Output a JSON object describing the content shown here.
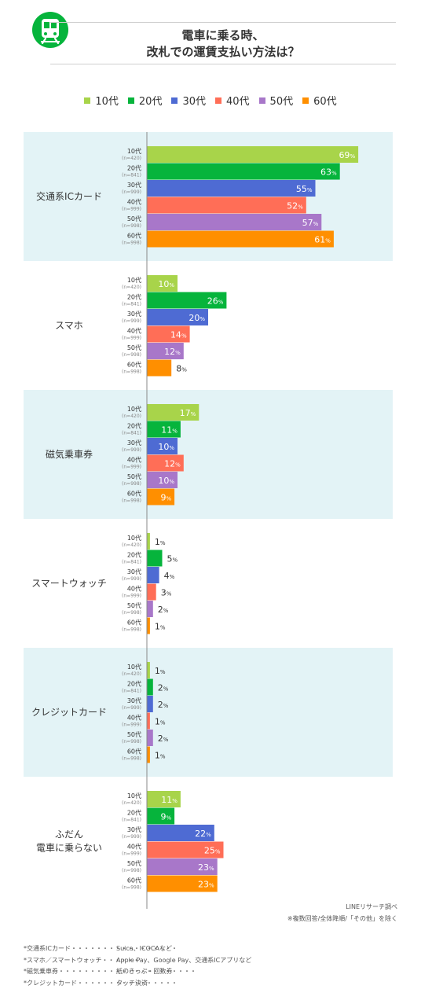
{
  "header": {
    "icon": "train-icon",
    "icon_color": "#06B43C",
    "title_line1": "電車に乗る時、",
    "title_line2": "改札での運賃支払い方法は？"
  },
  "colors": {
    "10代": "#A8D44A",
    "20代": "#06B43C",
    "30代": "#4E6BD3",
    "40代": "#FF6E57",
    "50代": "#A877C9",
    "60代": "#FF8F00",
    "panel": "#E3F3F6",
    "axis": "#888888"
  },
  "chart_data": {
    "type": "bar",
    "orientation": "horizontal",
    "value_unit": "%",
    "xlim": [
      0,
      100
    ],
    "series": [
      {
        "name": "10代",
        "n": "(n=420)"
      },
      {
        "name": "20代",
        "n": "(n=841)"
      },
      {
        "name": "30代",
        "n": "(n=999)"
      },
      {
        "name": "40代",
        "n": "(n=999)"
      },
      {
        "name": "50代",
        "n": "(n=998)"
      },
      {
        "name": "60代",
        "n": "(n=998)"
      }
    ],
    "categories": [
      {
        "label": [
          "交通系ICカード"
        ],
        "values": [
          69,
          63,
          55,
          52,
          57,
          61
        ],
        "shaded": true
      },
      {
        "label": [
          "スマホ"
        ],
        "values": [
          10,
          26,
          20,
          14,
          12,
          8
        ],
        "shaded": false
      },
      {
        "label": [
          "磁気乗車券"
        ],
        "values": [
          17,
          11,
          10,
          12,
          10,
          9
        ],
        "shaded": true
      },
      {
        "label": [
          "スマートウォッチ"
        ],
        "values": [
          1,
          5,
          4,
          3,
          2,
          1
        ],
        "shaded": false
      },
      {
        "label": [
          "クレジットカード"
        ],
        "values": [
          1,
          2,
          2,
          1,
          2,
          1
        ],
        "shaded": true
      },
      {
        "label": [
          "ふだん",
          "電車に乗らない"
        ],
        "values": [
          11,
          9,
          22,
          25,
          23,
          23
        ],
        "shaded": false
      }
    ],
    "legend_position": "top"
  },
  "credit": {
    "source": "LINEリサーチ調べ",
    "note": "※複数回答/全体降順/「その他」を除く"
  },
  "notes": [
    {
      "term": "*交通系ICカード・・・・・・・・・・・・・・・・・",
      "desc": "Suica、ICOCAなど"
    },
    {
      "term": "*スマホ／スマートウォッチ・・・・・・",
      "desc": "Apple Pay、Google Pay、交通系ICアプリなど"
    },
    {
      "term": "*磁気乗車券・・・・・・・・・・・・・・・・・・・・・・",
      "desc": "紙のきっぷ・回数券"
    },
    {
      "term": "*クレジットカード・・・・・・・・・・・・・・・・",
      "desc": "タッチ決済"
    }
  ]
}
